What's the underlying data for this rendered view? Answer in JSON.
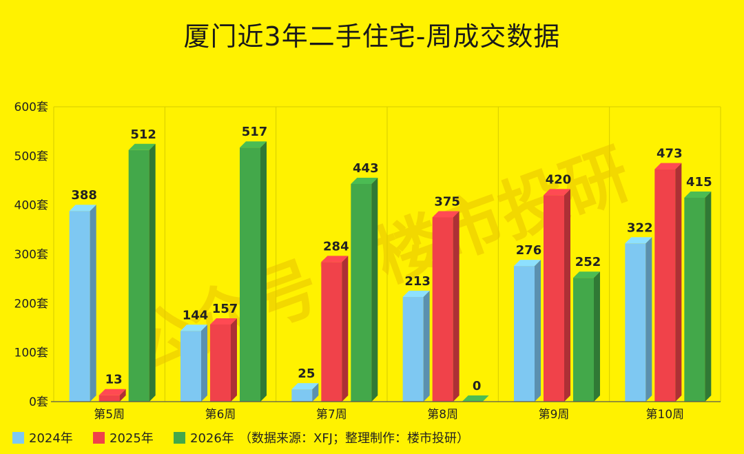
{
  "chart_data": {
    "type": "bar",
    "title": "厦门近3年二手住宅-周成交数据",
    "categories": [
      "第5周",
      "第6周",
      "第7周",
      "第8周",
      "第9周",
      "第10周"
    ],
    "series": [
      {
        "name": "2024年",
        "color": "#7EC8F2",
        "values": [
          388,
          144,
          25,
          213,
          276,
          322
        ]
      },
      {
        "name": "2025年",
        "color": "#F0424A",
        "values": [
          13,
          157,
          284,
          375,
          420,
          473
        ]
      },
      {
        "name": "2026年",
        "color": "#43A84A",
        "values": [
          512,
          517,
          443,
          0,
          252,
          415
        ]
      }
    ],
    "ylim": [
      0,
      600
    ],
    "yticks": [
      0,
      100,
      200,
      300,
      400,
      500,
      600
    ],
    "ytick_suffix": "套",
    "grid": "vertical-category-dividers",
    "legend_position": "bottom-left",
    "legend_note": "（数据来源：XFJ；整理制作：楼市投研）"
  },
  "watermark": "公众号：楼市投研"
}
